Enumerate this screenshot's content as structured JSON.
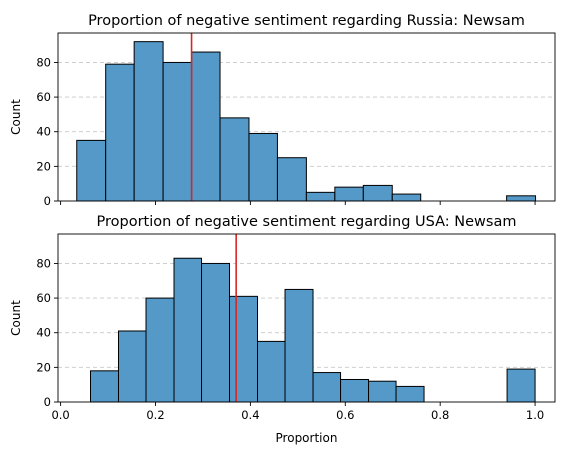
{
  "chart_data": [
    {
      "type": "bar",
      "title": "Proportion of negative sentiment regarding Russia: Newsam",
      "xlabel": "",
      "ylabel": "Count",
      "xlim": [
        -0.0055,
        1.042
      ],
      "ylim": [
        0,
        97
      ],
      "xticks": [
        0.0,
        0.2,
        0.4,
        0.6,
        0.8,
        1.0
      ],
      "xtick_labels_visible": false,
      "yticks": [
        0,
        20,
        40,
        60,
        80
      ],
      "grid": "y dashed",
      "bin_edges": [
        0.034,
        0.095,
        0.155,
        0.216,
        0.276,
        0.336,
        0.397,
        0.457,
        0.518,
        0.578,
        0.638,
        0.699,
        0.759,
        0.819,
        0.88,
        0.94,
        1.001
      ],
      "values": [
        35,
        79,
        92,
        80,
        86,
        48,
        39,
        25,
        5,
        8,
        9,
        4,
        0,
        0,
        0,
        3
      ],
      "mean_line": 0.276,
      "bar_color": "#5499c7",
      "line_color": "#d62728"
    },
    {
      "type": "bar",
      "title": "Proportion of negative sentiment regarding USA: Newsam",
      "xlabel": "Proportion",
      "ylabel": "Count",
      "xlim": [
        -0.0055,
        1.042
      ],
      "ylim": [
        0,
        97
      ],
      "xticks": [
        0.0,
        0.2,
        0.4,
        0.6,
        0.8,
        1.0
      ],
      "xtick_labels": [
        "0.0",
        "0.2",
        "0.4",
        "0.6",
        "0.8",
        "1.0"
      ],
      "xtick_labels_visible": true,
      "yticks": [
        0,
        20,
        40,
        60,
        80
      ],
      "grid": "y dashed",
      "bin_edges": [
        0.063,
        0.122,
        0.18,
        0.239,
        0.297,
        0.356,
        0.415,
        0.473,
        0.532,
        0.59,
        0.649,
        0.707,
        0.766,
        0.824,
        0.883,
        0.941,
        1.0
      ],
      "values": [
        18,
        41,
        60,
        83,
        80,
        61,
        35,
        65,
        17,
        13,
        12,
        9,
        0,
        0,
        0,
        19
      ],
      "mean_line": 0.37,
      "bar_color": "#5499c7",
      "line_color": "#d62728"
    }
  ]
}
